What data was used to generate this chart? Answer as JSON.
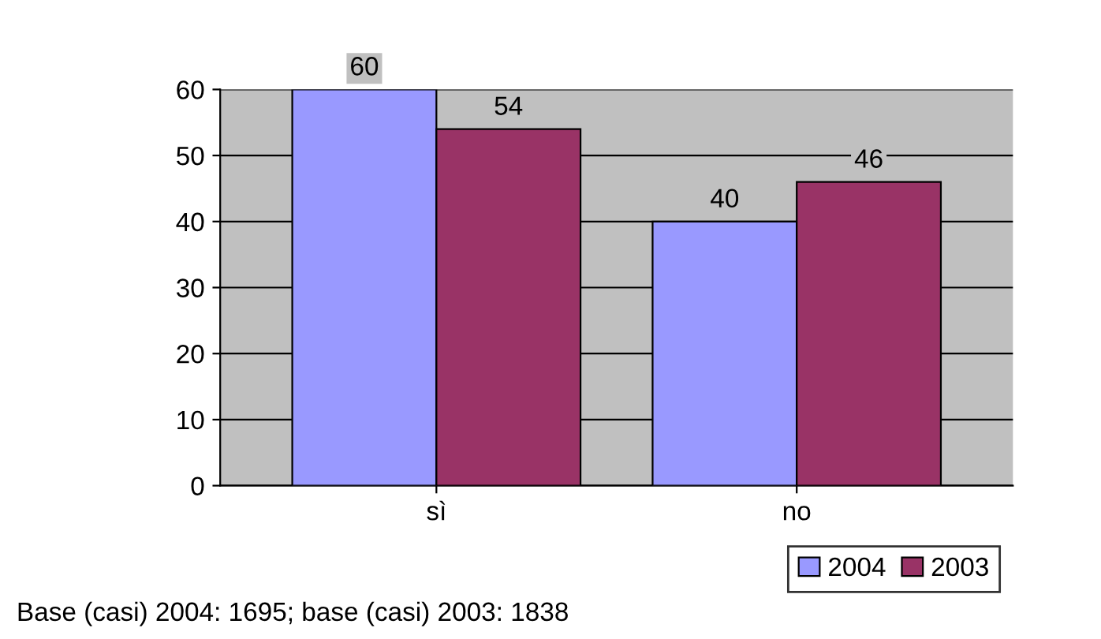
{
  "chart_data": {
    "type": "bar",
    "categories": [
      "sì",
      "no"
    ],
    "series": [
      {
        "name": "2004",
        "color": "#9999ff",
        "values": [
          60,
          40
        ]
      },
      {
        "name": "2003",
        "color": "#993366",
        "values": [
          54,
          46
        ]
      }
    ],
    "ylim": [
      0,
      60
    ],
    "yticks": [
      0,
      10,
      20,
      30,
      40,
      50,
      60
    ],
    "grid": "y",
    "legend": "bottom right",
    "data_labels": true,
    "annotations": [
      "Base (casi) 2004: 1695; base (casi) 2003: 1838"
    ]
  }
}
